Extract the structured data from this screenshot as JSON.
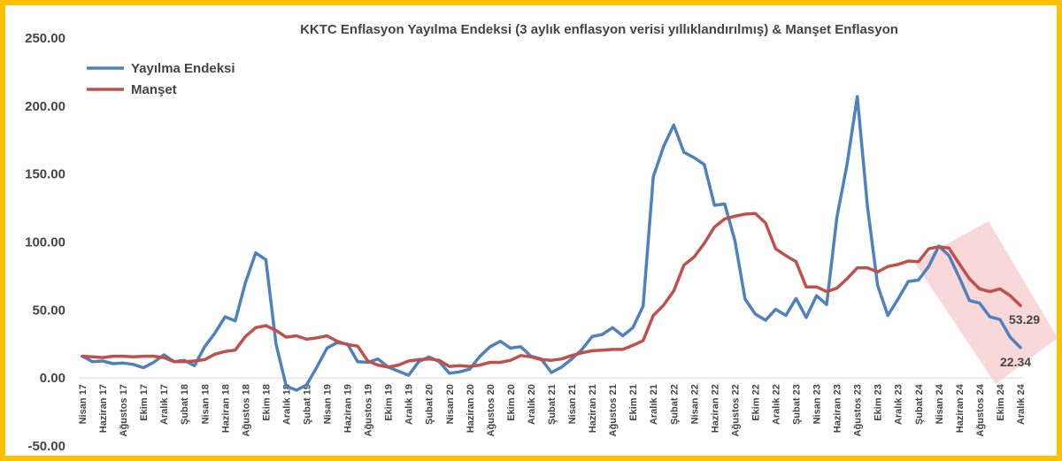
{
  "colors": {
    "frame": "#FFC000",
    "series_blue": "#4F81BD",
    "series_red": "#C0504D",
    "highlight_band": "#F2B8BA",
    "text": "#444444"
  },
  "chart_data": {
    "type": "line",
    "title": "KKTC Enflasyon Yayılma Endeksi (3 aylık enflasyon verisi yıllıklandırılmış) & Manşet Enflasyon",
    "xlabel": "",
    "ylabel": "",
    "ylim": [
      -50,
      250
    ],
    "ytick_step": 50,
    "yticks": [
      "-50.00",
      "0.00",
      "50.00",
      "100.00",
      "150.00",
      "200.00",
      "250.00"
    ],
    "grid": false,
    "legend": "top-left",
    "x": [
      "Nisan 17",
      "Mayıs 17",
      "Haziran 17",
      "Temmuz 17",
      "Ağustos 17",
      "Eylül 17",
      "Ekim 17",
      "Kasım 17",
      "Aralık 17",
      "Ocak 18",
      "Şubat 18",
      "Mart 18",
      "Nisan 18",
      "Mayıs 18",
      "Haziran 18",
      "Temmuz 18",
      "Ağustos 18",
      "Eylül 18",
      "Ekim 18",
      "Kasım 18",
      "Aralık 18",
      "Ocak 19",
      "Şubat 19",
      "Mart 19",
      "Nisan 19",
      "Mayıs 19",
      "Haziran 19",
      "Temmuz 19",
      "Ağustos 19",
      "Eylül 19",
      "Ekim 19",
      "Kasım 19",
      "Aralık 19",
      "Ocak 20",
      "Şubat 20",
      "Mart 20",
      "Nisan 20",
      "Mayıs 20",
      "Haziran 20",
      "Temmuz 20",
      "Ağustos 20",
      "Eylül 20",
      "Ekim 20",
      "Kasım 20",
      "Aralık 20",
      "Ocak 21",
      "Şubat 21",
      "Mart 21",
      "Nisan 21",
      "Mayıs 21",
      "Haziran 21",
      "Temmuz 21",
      "Ağustos 21",
      "Eylül 21",
      "Ekim 21",
      "Kasım 21",
      "Aralık 21",
      "Ocak 22",
      "Şubat 22",
      "Mart 22",
      "Nisan 22",
      "Mayıs 22",
      "Haziran 22",
      "Temmuz 22",
      "Ağustos 22",
      "Eylül 22",
      "Ekim 22",
      "Kasım 22",
      "Aralık 22",
      "Ocak 23",
      "Şubat 23",
      "Mart 23",
      "Nisan 23",
      "Mayıs 23",
      "Haziran 23",
      "Temmuz 23",
      "Ağustos 23",
      "Eylül 23",
      "Ekim 23",
      "Kasım 23",
      "Aralık 23",
      "Ocak 24",
      "Şubat 24",
      "Mart 24",
      "Nisan 24",
      "Mayıs 24",
      "Haziran 24",
      "Temmuz 24",
      "Ağustos 24",
      "Eylül 24",
      "Ekim 24",
      "Kasım 24",
      "Aralık 24"
    ],
    "shown_tick_labels": [
      "Nisan 17",
      "Haziran 17",
      "Ağustos 17",
      "Ekim 17",
      "Aralık 17",
      "Şubat 18",
      "Nisan 18",
      "Haziran 18",
      "Ağustos 18",
      "Ekim 18",
      "Aralık 18",
      "Şubat 19",
      "Nisan 19",
      "Haziran 19",
      "Ağustos 19",
      "Ekim 19",
      "Aralık 19",
      "Şubat 20",
      "Nisan 20",
      "Haziran 20",
      "Ağustos 20",
      "Ekim 20",
      "Aralık 20",
      "Şubat 21",
      "Nisan 21",
      "Haziran 21",
      "Ağustos 21",
      "Ekim 21",
      "Aralık 21",
      "Şubat 22",
      "Nisan 22",
      "Haziran 22",
      "Ağustos 22",
      "Ekim 22",
      "Aralık 22",
      "Şubat 23",
      "Nisan 23",
      "Haziran 23",
      "Ağustos 23",
      "Ekim 23",
      "Aralık 23",
      "Şubat 24",
      "Nisan 24",
      "Haziran 24",
      "Ağustos 24",
      "Ekim 24",
      "Aralık 24"
    ],
    "series": [
      {
        "name": "Yayılma Endeksi",
        "color": "#4F81BD",
        "values": [
          16,
          12,
          12.5,
          10.5,
          11,
          10,
          7.5,
          11.5,
          17,
          12,
          13,
          9,
          23,
          33,
          45,
          42,
          70,
          92,
          87,
          25,
          -6,
          -9,
          -5,
          8,
          22,
          26,
          25,
          12,
          11.5,
          14,
          8,
          5,
          2,
          12,
          15.5,
          12,
          3.5,
          4.5,
          6.5,
          16,
          23,
          27,
          22,
          23,
          16,
          14,
          4,
          8,
          14,
          21,
          30.5,
          32,
          37,
          31,
          37,
          53,
          148,
          170,
          186,
          166,
          162,
          157,
          127,
          128,
          101,
          58,
          47,
          42.5,
          50.5,
          46,
          58.5,
          44.5,
          60.5,
          54,
          118,
          157,
          207,
          126,
          68,
          46,
          58,
          71,
          72,
          82,
          97,
          90,
          74,
          57,
          55,
          45,
          43,
          30,
          22.34
        ]
      },
      {
        "name": "Manşet",
        "color": "#C0504D",
        "values": [
          16,
          15.5,
          15,
          16,
          16,
          15.5,
          16,
          16,
          15,
          12,
          12,
          12.5,
          13.5,
          17.5,
          19.5,
          20.5,
          30.5,
          37,
          38.5,
          35,
          30,
          31,
          28.5,
          29.5,
          31,
          27,
          24.5,
          23.5,
          12.5,
          9.5,
          8,
          9.5,
          12.5,
          13.5,
          14,
          13,
          8.5,
          9,
          8.5,
          9.5,
          11.5,
          11.5,
          13,
          16.5,
          15.5,
          13.5,
          13,
          14,
          16.5,
          18.5,
          20,
          20.5,
          21,
          21,
          24,
          27.5,
          46,
          53.5,
          64,
          83,
          89,
          99,
          111,
          117,
          119,
          120.5,
          121,
          114,
          95,
          90,
          85.5,
          67,
          67,
          63.5,
          66,
          73,
          81,
          81,
          78,
          82,
          83.5,
          86,
          85.5,
          95,
          96.5,
          95.5,
          84,
          73,
          65.5,
          63.5,
          65.5,
          60.5,
          53.29
        ]
      }
    ],
    "annotations": [
      "53.29",
      "22.34"
    ]
  }
}
